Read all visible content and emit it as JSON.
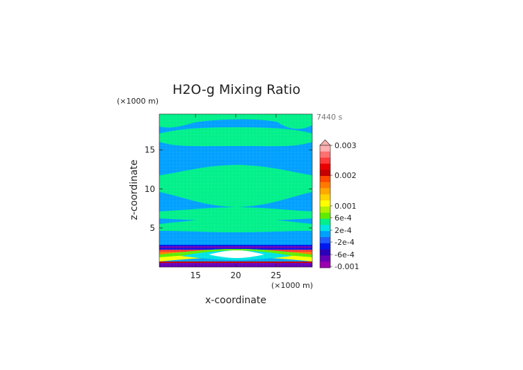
{
  "chart_data": {
    "type": "heatmap",
    "title": "H2O-g Mixing Ratio",
    "xlabel": "x-coordinate",
    "ylabel": "z-coordinate",
    "x_unit": "(×1000 m)",
    "y_unit": "(×1000 m)",
    "time_label": "7440 s",
    "xlim": [
      10.5,
      29.5
    ],
    "ylim": [
      0,
      19.6
    ],
    "x_ticks": [
      15,
      20,
      25
    ],
    "y_ticks": [
      5,
      10,
      15
    ],
    "grid": false,
    "legend": "colorbar right",
    "colorbar": {
      "labels": [
        "0.003",
        "0.002",
        "0.001",
        "6e-4",
        "2e-4",
        "-2e-4",
        "-6e-4",
        "-0.001"
      ],
      "colors": [
        "#ffb0b0",
        "#ff7070",
        "#ff3a3a",
        "#e80000",
        "#c40000",
        "#ff4800",
        "#ff7a00",
        "#ffa800",
        "#ffd200",
        "#ffff00",
        "#b4f000",
        "#60ec00",
        "#00f08a",
        "#00e4e4",
        "#00a0ff",
        "#1e5cff",
        "#0018f0",
        "#2a00b8",
        "#6600b8",
        "#9a00b0"
      ]
    },
    "bands": [
      {
        "z": [
          0.0,
          0.5
        ],
        "value": "-0.001"
      },
      {
        "z": [
          0.5,
          2.5
        ],
        "value": "0.002"
      },
      {
        "z": [
          2.5,
          3.5
        ],
        "value": "-6e-4"
      },
      {
        "z": [
          3.5,
          5.5
        ],
        "value": "-2e-4"
      },
      {
        "z": [
          5.5,
          7.0
        ],
        "value": "2e-4"
      },
      {
        "z": [
          7.0,
          8.0
        ],
        "value": "-2e-4"
      },
      {
        "z": [
          8.0,
          12.8
        ],
        "value": "2e-4"
      },
      {
        "z": [
          12.8,
          15.5
        ],
        "value": "-2e-4"
      },
      {
        "z": [
          15.5,
          17.0
        ],
        "value": "2e-4"
      },
      {
        "z": [
          17.0,
          17.8
        ],
        "value": "-2e-4"
      },
      {
        "z": [
          17.8,
          19.6
        ],
        "value": "2e-4"
      }
    ],
    "colors": {
      "background": "#00a0ff",
      "teal": "#00f08a",
      "text": "#222222"
    }
  }
}
